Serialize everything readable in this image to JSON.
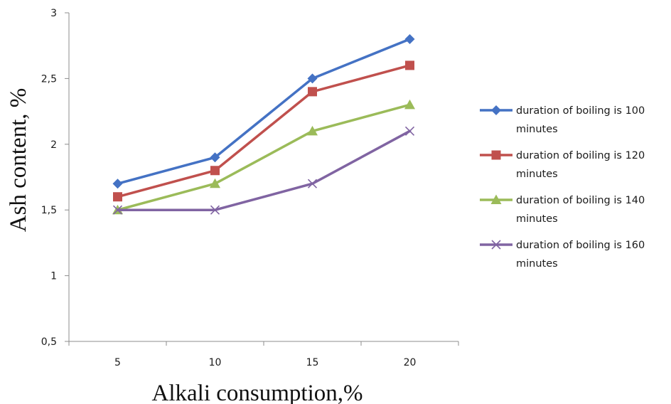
{
  "chart_data": {
    "type": "line",
    "x": [
      5,
      10,
      15,
      20
    ],
    "xlabel": "Alkali consumption,%",
    "ylabel": "Ash content, %",
    "ylim": [
      0.5,
      3
    ],
    "x_tick_labels": [
      "5",
      "10",
      "15",
      "20"
    ],
    "y_tick_labels": [
      "0,5",
      "1",
      "1,5",
      "2",
      "2,5",
      "3"
    ],
    "grid": false,
    "legend_position": "right",
    "series": [
      {
        "name": "duration of boiling is 100 minutes",
        "legend_lines": [
          "duration of boiling is 100",
          "minutes"
        ],
        "values": [
          1.7,
          1.9,
          2.5,
          2.8
        ],
        "color": "#4472C4",
        "marker": "diamond"
      },
      {
        "name": "duration of boiling is 120 minutes",
        "legend_lines": [
          "duration of boiling is 120",
          "minutes"
        ],
        "values": [
          1.6,
          1.8,
          2.4,
          2.6
        ],
        "color": "#C0504D",
        "marker": "square"
      },
      {
        "name": "duration of boiling is 140 minutes",
        "legend_lines": [
          "duration of boiling is 140",
          "minutes"
        ],
        "values": [
          1.5,
          1.7,
          2.1,
          2.3
        ],
        "color": "#9BBB59",
        "marker": "triangle"
      },
      {
        "name": "duration of boiling is 160 minutes",
        "legend_lines": [
          "duration of boiling is 160",
          "minutes"
        ],
        "values": [
          1.5,
          1.5,
          1.7,
          2.1
        ],
        "color": "#8064A2",
        "marker": "x"
      }
    ]
  }
}
